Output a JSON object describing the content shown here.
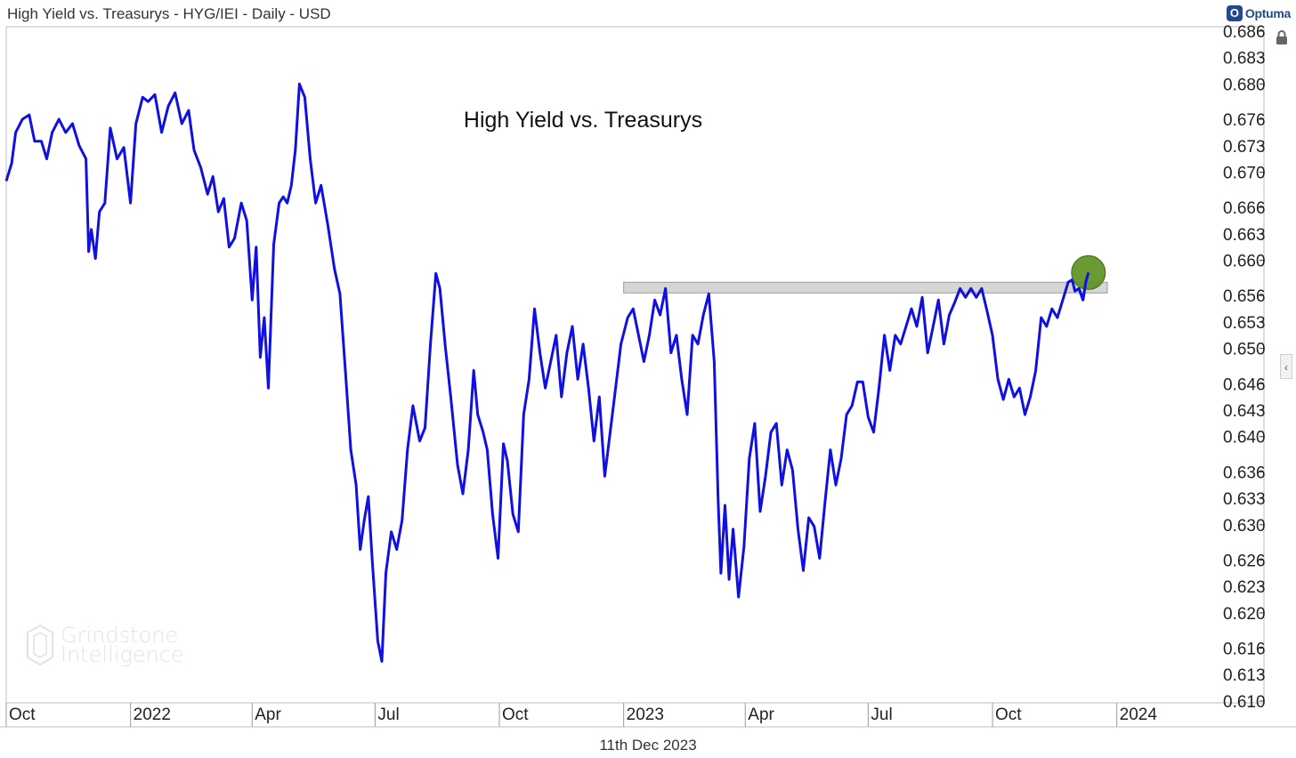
{
  "header": {
    "title": "High Yield vs. Treasurys - HYG/IEI - Daily - USD"
  },
  "brand": {
    "logo_letter": "O",
    "name": "Optuma"
  },
  "watermark": {
    "line1": "Grindstone",
    "line2": "Intelligence"
  },
  "footer": {
    "date": "11th Dec 2023"
  },
  "colors": {
    "series": "#1010e0",
    "marker": "#5a8f1e",
    "band": "#d6d6d6"
  },
  "icons": [
    "lock-icon",
    "chevron-left-icon"
  ],
  "chart_data": {
    "type": "line",
    "title": "High Yield vs. Treasurys",
    "xlabel": "",
    "ylabel": "",
    "x_tick_labels": [
      "Oct",
      "2022",
      "Apr",
      "Jul",
      "Oct",
      "2023",
      "Apr",
      "Jul",
      "Oct",
      "2024"
    ],
    "x_tick_dates": [
      "2021-10-01",
      "2022-01-01",
      "2022-04-01",
      "2022-07-01",
      "2022-10-01",
      "2023-01-01",
      "2023-04-01",
      "2023-07-01",
      "2023-10-01",
      "2024-01-01"
    ],
    "xlim": [
      "2021-10-01",
      "2024-03-15"
    ],
    "y_ticks": [
      "0.686",
      "0.683",
      "0.680",
      "0.676",
      "0.673",
      "0.670",
      "0.666",
      "0.663",
      "0.660",
      "0.656",
      "0.653",
      "0.650",
      "0.646",
      "0.643",
      "0.640",
      "0.636",
      "0.633",
      "0.630",
      "0.626",
      "0.623",
      "0.620",
      "0.616",
      "0.613",
      "0.610"
    ],
    "ylim": [
      0.6103,
      0.6865
    ],
    "grid": false,
    "resistance_band": {
      "from": "2023-01-01",
      "to": "2023-12-25",
      "low": 0.6565,
      "high": 0.6573
    },
    "highlight_point": {
      "x": "2023-12-11",
      "y": 0.6586
    },
    "series": [
      {
        "points": [
          [
            "2021-10-01",
            0.669
          ],
          [
            "2021-10-05",
            0.671
          ],
          [
            "2021-10-08",
            0.6745
          ],
          [
            "2021-10-13",
            0.676
          ],
          [
            "2021-10-18",
            0.6765
          ],
          [
            "2021-10-22",
            0.6735
          ],
          [
            "2021-10-27",
            0.6735
          ],
          [
            "2021-10-31",
            0.6715
          ],
          [
            "2021-11-04",
            0.6745
          ],
          [
            "2021-11-09",
            0.676
          ],
          [
            "2021-11-14",
            0.6745
          ],
          [
            "2021-11-19",
            0.6755
          ],
          [
            "2021-11-24",
            0.673
          ],
          [
            "2021-11-29",
            0.6715
          ],
          [
            "2021-12-01",
            0.661
          ],
          [
            "2021-12-03",
            0.6635
          ],
          [
            "2021-12-06",
            0.6602
          ],
          [
            "2021-12-09",
            0.6655
          ],
          [
            "2021-12-13",
            0.6665
          ],
          [
            "2021-12-17",
            0.675
          ],
          [
            "2021-12-22",
            0.6715
          ],
          [
            "2021-12-27",
            0.6728
          ],
          [
            "2022-01-01",
            0.6665
          ],
          [
            "2022-01-05",
            0.6755
          ],
          [
            "2022-01-10",
            0.6785
          ],
          [
            "2022-01-14",
            0.678
          ],
          [
            "2022-01-19",
            0.6788
          ],
          [
            "2022-01-24",
            0.6745
          ],
          [
            "2022-01-29",
            0.6775
          ],
          [
            "2022-02-03",
            0.679
          ],
          [
            "2022-02-08",
            0.6755
          ],
          [
            "2022-02-13",
            0.677
          ],
          [
            "2022-02-17",
            0.6725
          ],
          [
            "2022-02-22",
            0.6705
          ],
          [
            "2022-02-27",
            0.6675
          ],
          [
            "2022-03-03",
            0.6695
          ],
          [
            "2022-03-07",
            0.6655
          ],
          [
            "2022-03-11",
            0.667
          ],
          [
            "2022-03-15",
            0.6615
          ],
          [
            "2022-03-19",
            0.6625
          ],
          [
            "2022-03-24",
            0.6665
          ],
          [
            "2022-03-28",
            0.6645
          ],
          [
            "2022-04-01",
            0.6555
          ],
          [
            "2022-04-04",
            0.6615
          ],
          [
            "2022-04-07",
            0.649
          ],
          [
            "2022-04-10",
            0.6535
          ],
          [
            "2022-04-13",
            0.6455
          ],
          [
            "2022-04-17",
            0.6618
          ],
          [
            "2022-04-21",
            0.6665
          ],
          [
            "2022-04-24",
            0.6672
          ],
          [
            "2022-04-27",
            0.6665
          ],
          [
            "2022-04-30",
            0.6685
          ],
          [
            "2022-05-03",
            0.6725
          ],
          [
            "2022-05-06",
            0.68
          ],
          [
            "2022-05-10",
            0.6785
          ],
          [
            "2022-05-14",
            0.6715
          ],
          [
            "2022-05-18",
            0.6665
          ],
          [
            "2022-05-22",
            0.6685
          ],
          [
            "2022-05-27",
            0.664
          ],
          [
            "2022-06-01",
            0.659
          ],
          [
            "2022-06-05",
            0.6562
          ],
          [
            "2022-06-09",
            0.6475
          ],
          [
            "2022-06-13",
            0.6385
          ],
          [
            "2022-06-17",
            0.6345
          ],
          [
            "2022-06-20",
            0.6272
          ],
          [
            "2022-06-23",
            0.6305
          ],
          [
            "2022-06-26",
            0.6332
          ],
          [
            "2022-06-29",
            0.6258
          ],
          [
            "2022-07-03",
            0.6168
          ],
          [
            "2022-07-06",
            0.6145
          ],
          [
            "2022-07-09",
            0.6245
          ],
          [
            "2022-07-13",
            0.6292
          ],
          [
            "2022-07-17",
            0.6272
          ],
          [
            "2022-07-21",
            0.6305
          ],
          [
            "2022-07-25",
            0.6385
          ],
          [
            "2022-07-29",
            0.6435
          ],
          [
            "2022-08-03",
            0.6395
          ],
          [
            "2022-08-07",
            0.641
          ],
          [
            "2022-08-11",
            0.6505
          ],
          [
            "2022-08-15",
            0.6585
          ],
          [
            "2022-08-18",
            0.6568
          ],
          [
            "2022-08-22",
            0.6502
          ],
          [
            "2022-08-26",
            0.6445
          ],
          [
            "2022-08-31",
            0.6368
          ],
          [
            "2022-09-04",
            0.6335
          ],
          [
            "2022-09-08",
            0.6385
          ],
          [
            "2022-09-12",
            0.6475
          ],
          [
            "2022-09-15",
            0.6425
          ],
          [
            "2022-09-19",
            0.6405
          ],
          [
            "2022-09-22",
            0.6385
          ],
          [
            "2022-09-26",
            0.6312
          ],
          [
            "2022-09-30",
            0.6262
          ],
          [
            "2022-10-04",
            0.6392
          ],
          [
            "2022-10-07",
            0.6372
          ],
          [
            "2022-10-11",
            0.6312
          ],
          [
            "2022-10-15",
            0.6292
          ],
          [
            "2022-10-19",
            0.6425
          ],
          [
            "2022-10-23",
            0.6465
          ],
          [
            "2022-10-27",
            0.6545
          ],
          [
            "2022-10-31",
            0.6495
          ],
          [
            "2022-11-04",
            0.6455
          ],
          [
            "2022-11-08",
            0.6485
          ],
          [
            "2022-11-12",
            0.6515
          ],
          [
            "2022-11-16",
            0.6445
          ],
          [
            "2022-11-20",
            0.6495
          ],
          [
            "2022-11-24",
            0.6525
          ],
          [
            "2022-11-28",
            0.6465
          ],
          [
            "2022-12-02",
            0.6505
          ],
          [
            "2022-12-06",
            0.6455
          ],
          [
            "2022-12-10",
            0.6395
          ],
          [
            "2022-12-14",
            0.6445
          ],
          [
            "2022-12-18",
            0.6355
          ],
          [
            "2022-12-22",
            0.6405
          ],
          [
            "2022-12-26",
            0.6455
          ],
          [
            "2022-12-30",
            0.6505
          ],
          [
            "2023-01-04",
            0.6535
          ],
          [
            "2023-01-08",
            0.6545
          ],
          [
            "2023-01-12",
            0.6515
          ],
          [
            "2023-01-16",
            0.6485
          ],
          [
            "2023-01-20",
            0.6515
          ],
          [
            "2023-01-24",
            0.6555
          ],
          [
            "2023-01-28",
            0.6538
          ],
          [
            "2023-02-01",
            0.6568
          ],
          [
            "2023-02-05",
            0.6495
          ],
          [
            "2023-02-09",
            0.6515
          ],
          [
            "2023-02-13",
            0.6465
          ],
          [
            "2023-02-17",
            0.6425
          ],
          [
            "2023-02-21",
            0.6515
          ],
          [
            "2023-02-25",
            0.6505
          ],
          [
            "2023-03-01",
            0.6538
          ],
          [
            "2023-03-05",
            0.6562
          ],
          [
            "2023-03-09",
            0.6485
          ],
          [
            "2023-03-12",
            0.6325
          ],
          [
            "2023-03-14",
            0.6245
          ],
          [
            "2023-03-17",
            0.6322
          ],
          [
            "2023-03-20",
            0.6238
          ],
          [
            "2023-03-23",
            0.6295
          ],
          [
            "2023-03-27",
            0.6218
          ],
          [
            "2023-03-31",
            0.6275
          ],
          [
            "2023-04-04",
            0.6375
          ],
          [
            "2023-04-08",
            0.6415
          ],
          [
            "2023-04-12",
            0.6315
          ],
          [
            "2023-04-16",
            0.6355
          ],
          [
            "2023-04-20",
            0.6405
          ],
          [
            "2023-04-24",
            0.6415
          ],
          [
            "2023-04-28",
            0.6345
          ],
          [
            "2023-05-02",
            0.6385
          ],
          [
            "2023-05-06",
            0.6362
          ],
          [
            "2023-05-10",
            0.6295
          ],
          [
            "2023-05-14",
            0.6248
          ],
          [
            "2023-05-18",
            0.6308
          ],
          [
            "2023-05-22",
            0.6298
          ],
          [
            "2023-05-26",
            0.6262
          ],
          [
            "2023-05-30",
            0.6325
          ],
          [
            "2023-06-03",
            0.6385
          ],
          [
            "2023-06-07",
            0.6345
          ],
          [
            "2023-06-11",
            0.6375
          ],
          [
            "2023-06-15",
            0.6425
          ],
          [
            "2023-06-19",
            0.6435
          ],
          [
            "2023-06-23",
            0.6462
          ],
          [
            "2023-06-27",
            0.6462
          ],
          [
            "2023-07-01",
            0.6422
          ],
          [
            "2023-07-05",
            0.6405
          ],
          [
            "2023-07-09",
            0.6455
          ],
          [
            "2023-07-13",
            0.6515
          ],
          [
            "2023-07-17",
            0.6475
          ],
          [
            "2023-07-21",
            0.6515
          ],
          [
            "2023-07-25",
            0.6505
          ],
          [
            "2023-07-29",
            0.6525
          ],
          [
            "2023-08-02",
            0.6545
          ],
          [
            "2023-08-06",
            0.6525
          ],
          [
            "2023-08-10",
            0.6558
          ],
          [
            "2023-08-14",
            0.6495
          ],
          [
            "2023-08-18",
            0.6525
          ],
          [
            "2023-08-22",
            0.6555
          ],
          [
            "2023-08-26",
            0.6505
          ],
          [
            "2023-08-30",
            0.6538
          ],
          [
            "2023-09-03",
            0.6552
          ],
          [
            "2023-09-07",
            0.6568
          ],
          [
            "2023-09-11",
            0.6558
          ],
          [
            "2023-09-15",
            0.6568
          ],
          [
            "2023-09-19",
            0.6558
          ],
          [
            "2023-09-23",
            0.6568
          ],
          [
            "2023-09-27",
            0.6542
          ],
          [
            "2023-10-01",
            0.6515
          ],
          [
            "2023-10-05",
            0.6465
          ],
          [
            "2023-10-09",
            0.6442
          ],
          [
            "2023-10-13",
            0.6465
          ],
          [
            "2023-10-17",
            0.6445
          ],
          [
            "2023-10-21",
            0.6455
          ],
          [
            "2023-10-25",
            0.6425
          ],
          [
            "2023-10-29",
            0.6445
          ],
          [
            "2023-11-02",
            0.6475
          ],
          [
            "2023-11-06",
            0.6535
          ],
          [
            "2023-11-10",
            0.6525
          ],
          [
            "2023-11-14",
            0.6545
          ],
          [
            "2023-11-18",
            0.6535
          ],
          [
            "2023-11-22",
            0.6555
          ],
          [
            "2023-11-26",
            0.6575
          ],
          [
            "2023-11-29",
            0.6578
          ],
          [
            "2023-12-01",
            0.6565
          ],
          [
            "2023-12-04",
            0.6568
          ],
          [
            "2023-12-07",
            0.6555
          ],
          [
            "2023-12-09",
            0.6575
          ],
          [
            "2023-12-11",
            0.6586
          ]
        ]
      }
    ]
  }
}
